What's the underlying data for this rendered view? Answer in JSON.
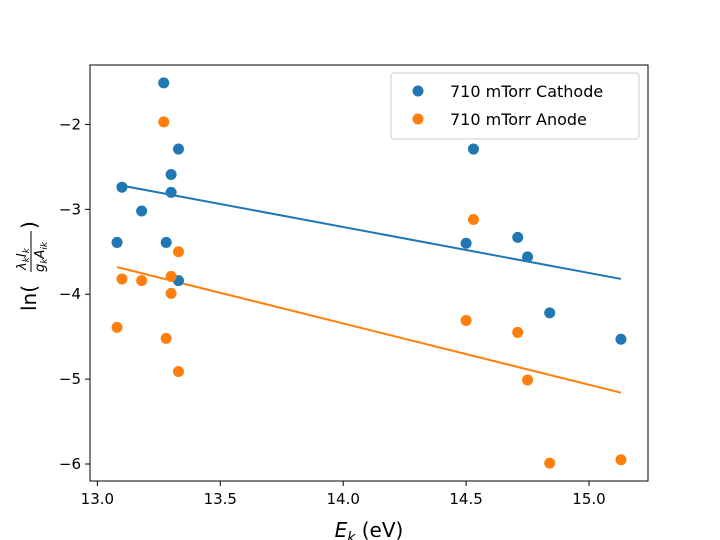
{
  "chart_data": {
    "type": "scatter",
    "xlabel": "E_k (eV)",
    "ylabel": "ln(λ_k I_k / g_k A_ik)",
    "xlim": [
      12.97,
      15.24
    ],
    "ylim": [
      -6.2,
      -1.3
    ],
    "xticks": [
      13.0,
      13.5,
      14.0,
      14.5,
      15.0
    ],
    "xtick_labels": [
      "13.0",
      "13.5",
      "14.0",
      "14.5",
      "15.0"
    ],
    "yticks": [
      -2,
      -3,
      -4,
      -5,
      -6
    ],
    "ytick_labels": [
      "−2",
      "−3",
      "−4",
      "−5",
      "−6"
    ],
    "grid": false,
    "legend_position": "top-right",
    "series": [
      {
        "name": "710 mTorr Cathode",
        "color": "#1f77b4",
        "points": [
          [
            13.08,
            -3.39
          ],
          [
            13.1,
            -2.74
          ],
          [
            13.18,
            -3.02
          ],
          [
            13.27,
            -1.51
          ],
          [
            13.28,
            -3.39
          ],
          [
            13.3,
            -2.59
          ],
          [
            13.3,
            -2.8
          ],
          [
            13.33,
            -2.29
          ],
          [
            13.33,
            -3.84
          ],
          [
            14.5,
            -3.4
          ],
          [
            14.53,
            -2.29
          ],
          [
            14.71,
            -3.33
          ],
          [
            14.75,
            -3.56
          ],
          [
            14.84,
            -4.22
          ],
          [
            15.13,
            -4.53
          ]
        ],
        "fit": [
          [
            13.08,
            -2.71
          ],
          [
            15.13,
            -3.82
          ]
        ]
      },
      {
        "name": "710 mTorr Anode",
        "color": "#ff7f0e",
        "points": [
          [
            13.08,
            -4.39
          ],
          [
            13.1,
            -3.82
          ],
          [
            13.18,
            -3.84
          ],
          [
            13.27,
            -1.97
          ],
          [
            13.28,
            -4.52
          ],
          [
            13.3,
            -3.79
          ],
          [
            13.3,
            -3.99
          ],
          [
            13.33,
            -3.5
          ],
          [
            13.33,
            -4.91
          ],
          [
            14.5,
            -4.31
          ],
          [
            14.53,
            -3.12
          ],
          [
            14.71,
            -4.45
          ],
          [
            14.75,
            -5.01
          ],
          [
            14.84,
            -5.99
          ],
          [
            15.13,
            -5.95
          ]
        ],
        "fit": [
          [
            13.08,
            -3.68
          ],
          [
            15.13,
            -5.16
          ]
        ]
      }
    ]
  }
}
